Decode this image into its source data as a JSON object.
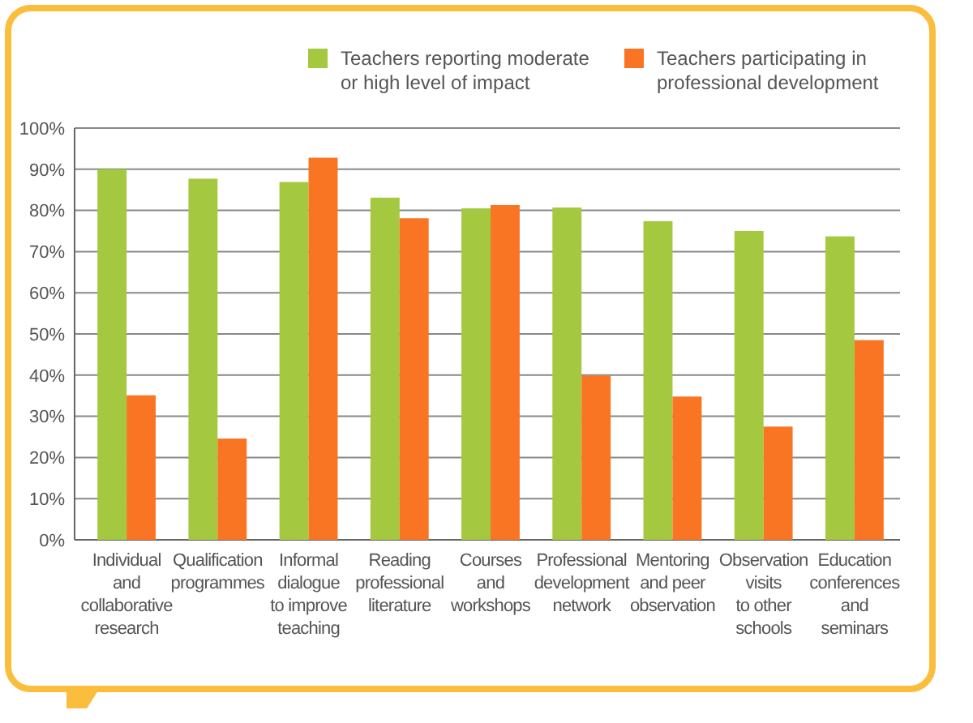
{
  "chart_data": {
    "type": "bar",
    "categories": [
      "Individual\nand\ncollaborative\nresearch",
      "Qualification\nprogrammes",
      "Informal\ndialogue\nto improve\nteaching",
      "Reading\nprofessional\nliterature",
      "Courses\nand\nworkshops",
      "Professional\ndevelopment\nnetwork",
      "Mentoring\nand peer\nobservation",
      "Observation\nvisits\nto other\nschools",
      "Education\nconferences\nand\nseminars"
    ],
    "series": [
      {
        "name": "Teachers reporting moderate\nor high level of impact",
        "color": "#a4c83f",
        "values": [
          90,
          87.7,
          86.9,
          83.1,
          80.5,
          80.7,
          77.4,
          75,
          73.7
        ]
      },
      {
        "name": "Teachers participating in\nprofessional development",
        "color": "#f97523",
        "values": [
          35.1,
          24.6,
          92.8,
          78.1,
          81.3,
          39.9,
          34.8,
          27.5,
          48.5
        ]
      }
    ],
    "ylim": [
      0,
      100
    ],
    "yticks": [
      {
        "value": 0,
        "label": "0%"
      },
      {
        "value": 10,
        "label": "10%"
      },
      {
        "value": 20,
        "label": "20%"
      },
      {
        "value": 30,
        "label": "30%"
      },
      {
        "value": 40,
        "label": "40%"
      },
      {
        "value": 50,
        "label": "50%"
      },
      {
        "value": 60,
        "label": "60%"
      },
      {
        "value": 70,
        "label": "70%"
      },
      {
        "value": 80,
        "label": "80%"
      },
      {
        "value": 90,
        "label": "90%"
      },
      {
        "value": 100,
        "label": "100%"
      }
    ],
    "grid": "y",
    "legend": "top right"
  }
}
